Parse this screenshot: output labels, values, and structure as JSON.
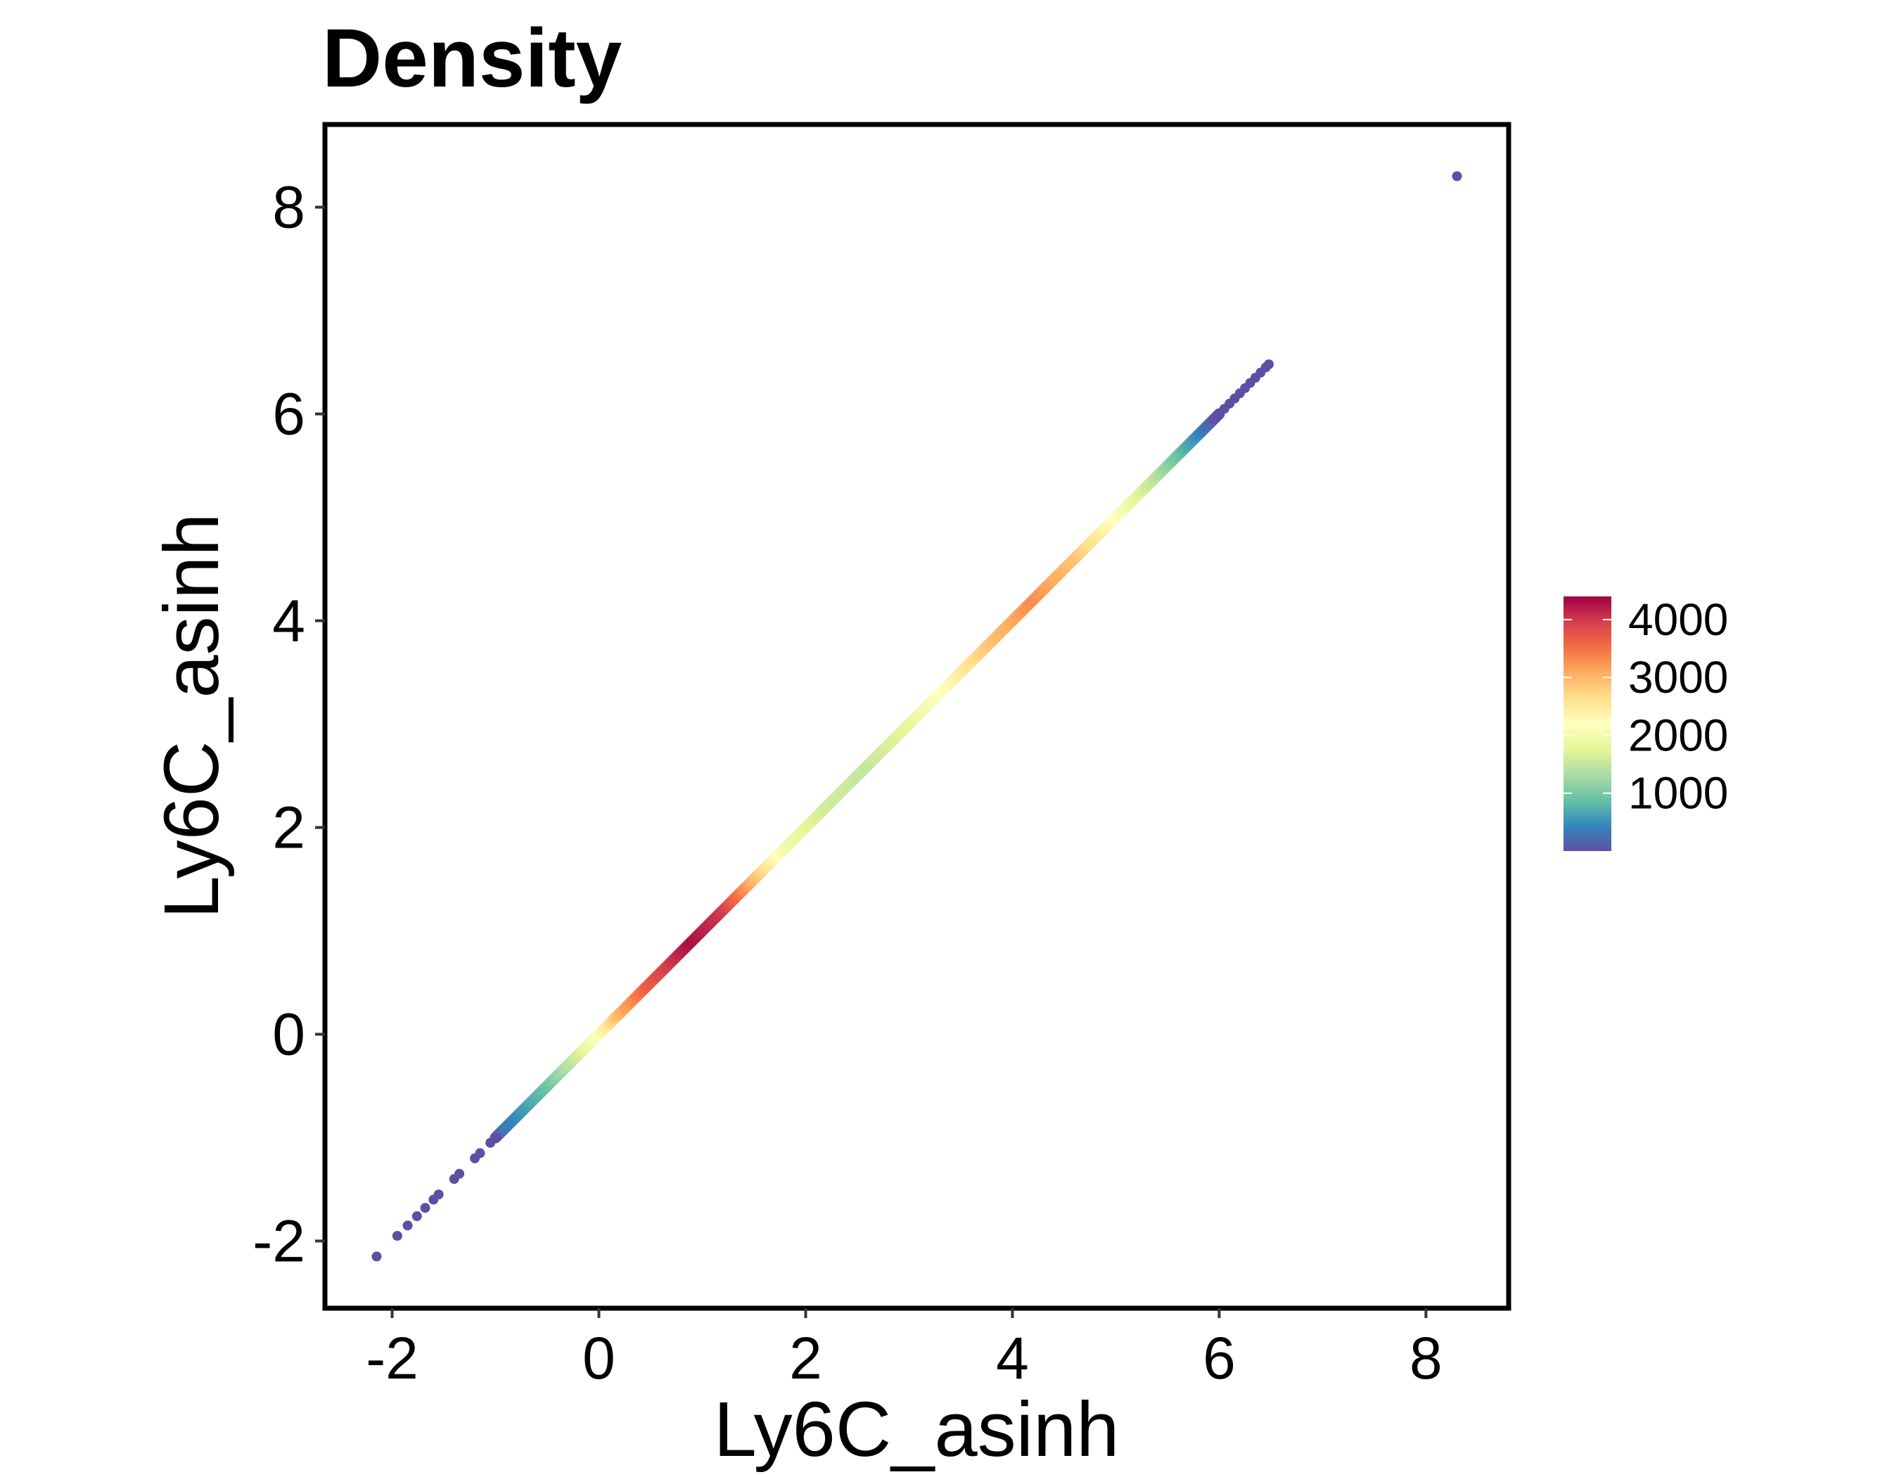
{
  "chart_data": {
    "type": "scatter",
    "title": "Density",
    "xlabel": "Ly6C_asinh",
    "ylabel": "Ly6C_asinh",
    "xlim": [
      -2.65,
      8.8
    ],
    "ylim": [
      -2.65,
      8.8
    ],
    "x_ticks": [
      {
        "value": -2,
        "label": "-2"
      },
      {
        "value": 0,
        "label": "0"
      },
      {
        "value": 2,
        "label": "2"
      },
      {
        "value": 4,
        "label": "4"
      },
      {
        "value": 6,
        "label": "6"
      },
      {
        "value": 8,
        "label": "8"
      }
    ],
    "y_ticks": [
      {
        "value": -2,
        "label": "-2"
      },
      {
        "value": 0,
        "label": "0"
      },
      {
        "value": 2,
        "label": "2"
      },
      {
        "value": 4,
        "label": "4"
      },
      {
        "value": 6,
        "label": "6"
      },
      {
        "value": 8,
        "label": "8"
      }
    ],
    "grid": false,
    "color_scale": {
      "name": "Spectral",
      "range": [
        0,
        4400
      ],
      "ticks": [
        {
          "value": 1000,
          "label": "1000"
        },
        {
          "value": 2000,
          "label": "2000"
        },
        {
          "value": 3000,
          "label": "3000"
        },
        {
          "value": 4000,
          "label": "4000"
        }
      ],
      "colors": [
        "#5E4FA2",
        "#3288BD",
        "#66C2A5",
        "#ABDDA4",
        "#E6F598",
        "#FFFFBF",
        "#FEE08B",
        "#FDAE61",
        "#F46D43",
        "#D53E4F",
        "#9E0142"
      ]
    },
    "legend_position": "right",
    "density_profile": [
      {
        "x": -1.0,
        "density": 0
      },
      {
        "x": -0.9,
        "density": 300
      },
      {
        "x": -0.5,
        "density": 900
      },
      {
        "x": -0.2,
        "density": 1600
      },
      {
        "x": 0.0,
        "density": 2200
      },
      {
        "x": 0.2,
        "density": 3000
      },
      {
        "x": 0.5,
        "density": 3700
      },
      {
        "x": 0.9,
        "density": 4300
      },
      {
        "x": 1.2,
        "density": 4000
      },
      {
        "x": 1.5,
        "density": 3000
      },
      {
        "x": 1.8,
        "density": 2000
      },
      {
        "x": 2.2,
        "density": 1600
      },
      {
        "x": 2.6,
        "density": 1500
      },
      {
        "x": 3.0,
        "density": 1800
      },
      {
        "x": 3.4,
        "density": 2300
      },
      {
        "x": 3.8,
        "density": 2900
      },
      {
        "x": 4.2,
        "density": 3300
      },
      {
        "x": 4.6,
        "density": 2900
      },
      {
        "x": 5.0,
        "density": 2200
      },
      {
        "x": 5.4,
        "density": 1400
      },
      {
        "x": 5.7,
        "density": 700
      },
      {
        "x": 6.0,
        "density": 0
      }
    ],
    "sparse_points": [
      {
        "x": -2.15,
        "y": -2.15
      },
      {
        "x": -1.95,
        "y": -1.95
      },
      {
        "x": -1.85,
        "y": -1.85
      },
      {
        "x": -1.76,
        "y": -1.76
      },
      {
        "x": -1.68,
        "y": -1.68
      },
      {
        "x": -1.6,
        "y": -1.6
      },
      {
        "x": -1.55,
        "y": -1.55
      },
      {
        "x": -1.4,
        "y": -1.4
      },
      {
        "x": -1.35,
        "y": -1.35
      },
      {
        "x": -1.2,
        "y": -1.2
      },
      {
        "x": -1.15,
        "y": -1.15
      },
      {
        "x": -1.05,
        "y": -1.05
      },
      {
        "x": -1.0,
        "y": -1.0
      },
      {
        "x": 5.95,
        "y": 5.95
      },
      {
        "x": 6.0,
        "y": 6.0
      },
      {
        "x": 6.05,
        "y": 6.05
      },
      {
        "x": 6.1,
        "y": 6.1
      },
      {
        "x": 6.15,
        "y": 6.15
      },
      {
        "x": 6.2,
        "y": 6.2
      },
      {
        "x": 6.25,
        "y": 6.25
      },
      {
        "x": 6.3,
        "y": 6.3
      },
      {
        "x": 6.35,
        "y": 6.35
      },
      {
        "x": 6.4,
        "y": 6.4
      },
      {
        "x": 6.45,
        "y": 6.45
      },
      {
        "x": 6.48,
        "y": 6.48
      },
      {
        "x": 8.3,
        "y": 8.3
      }
    ]
  }
}
